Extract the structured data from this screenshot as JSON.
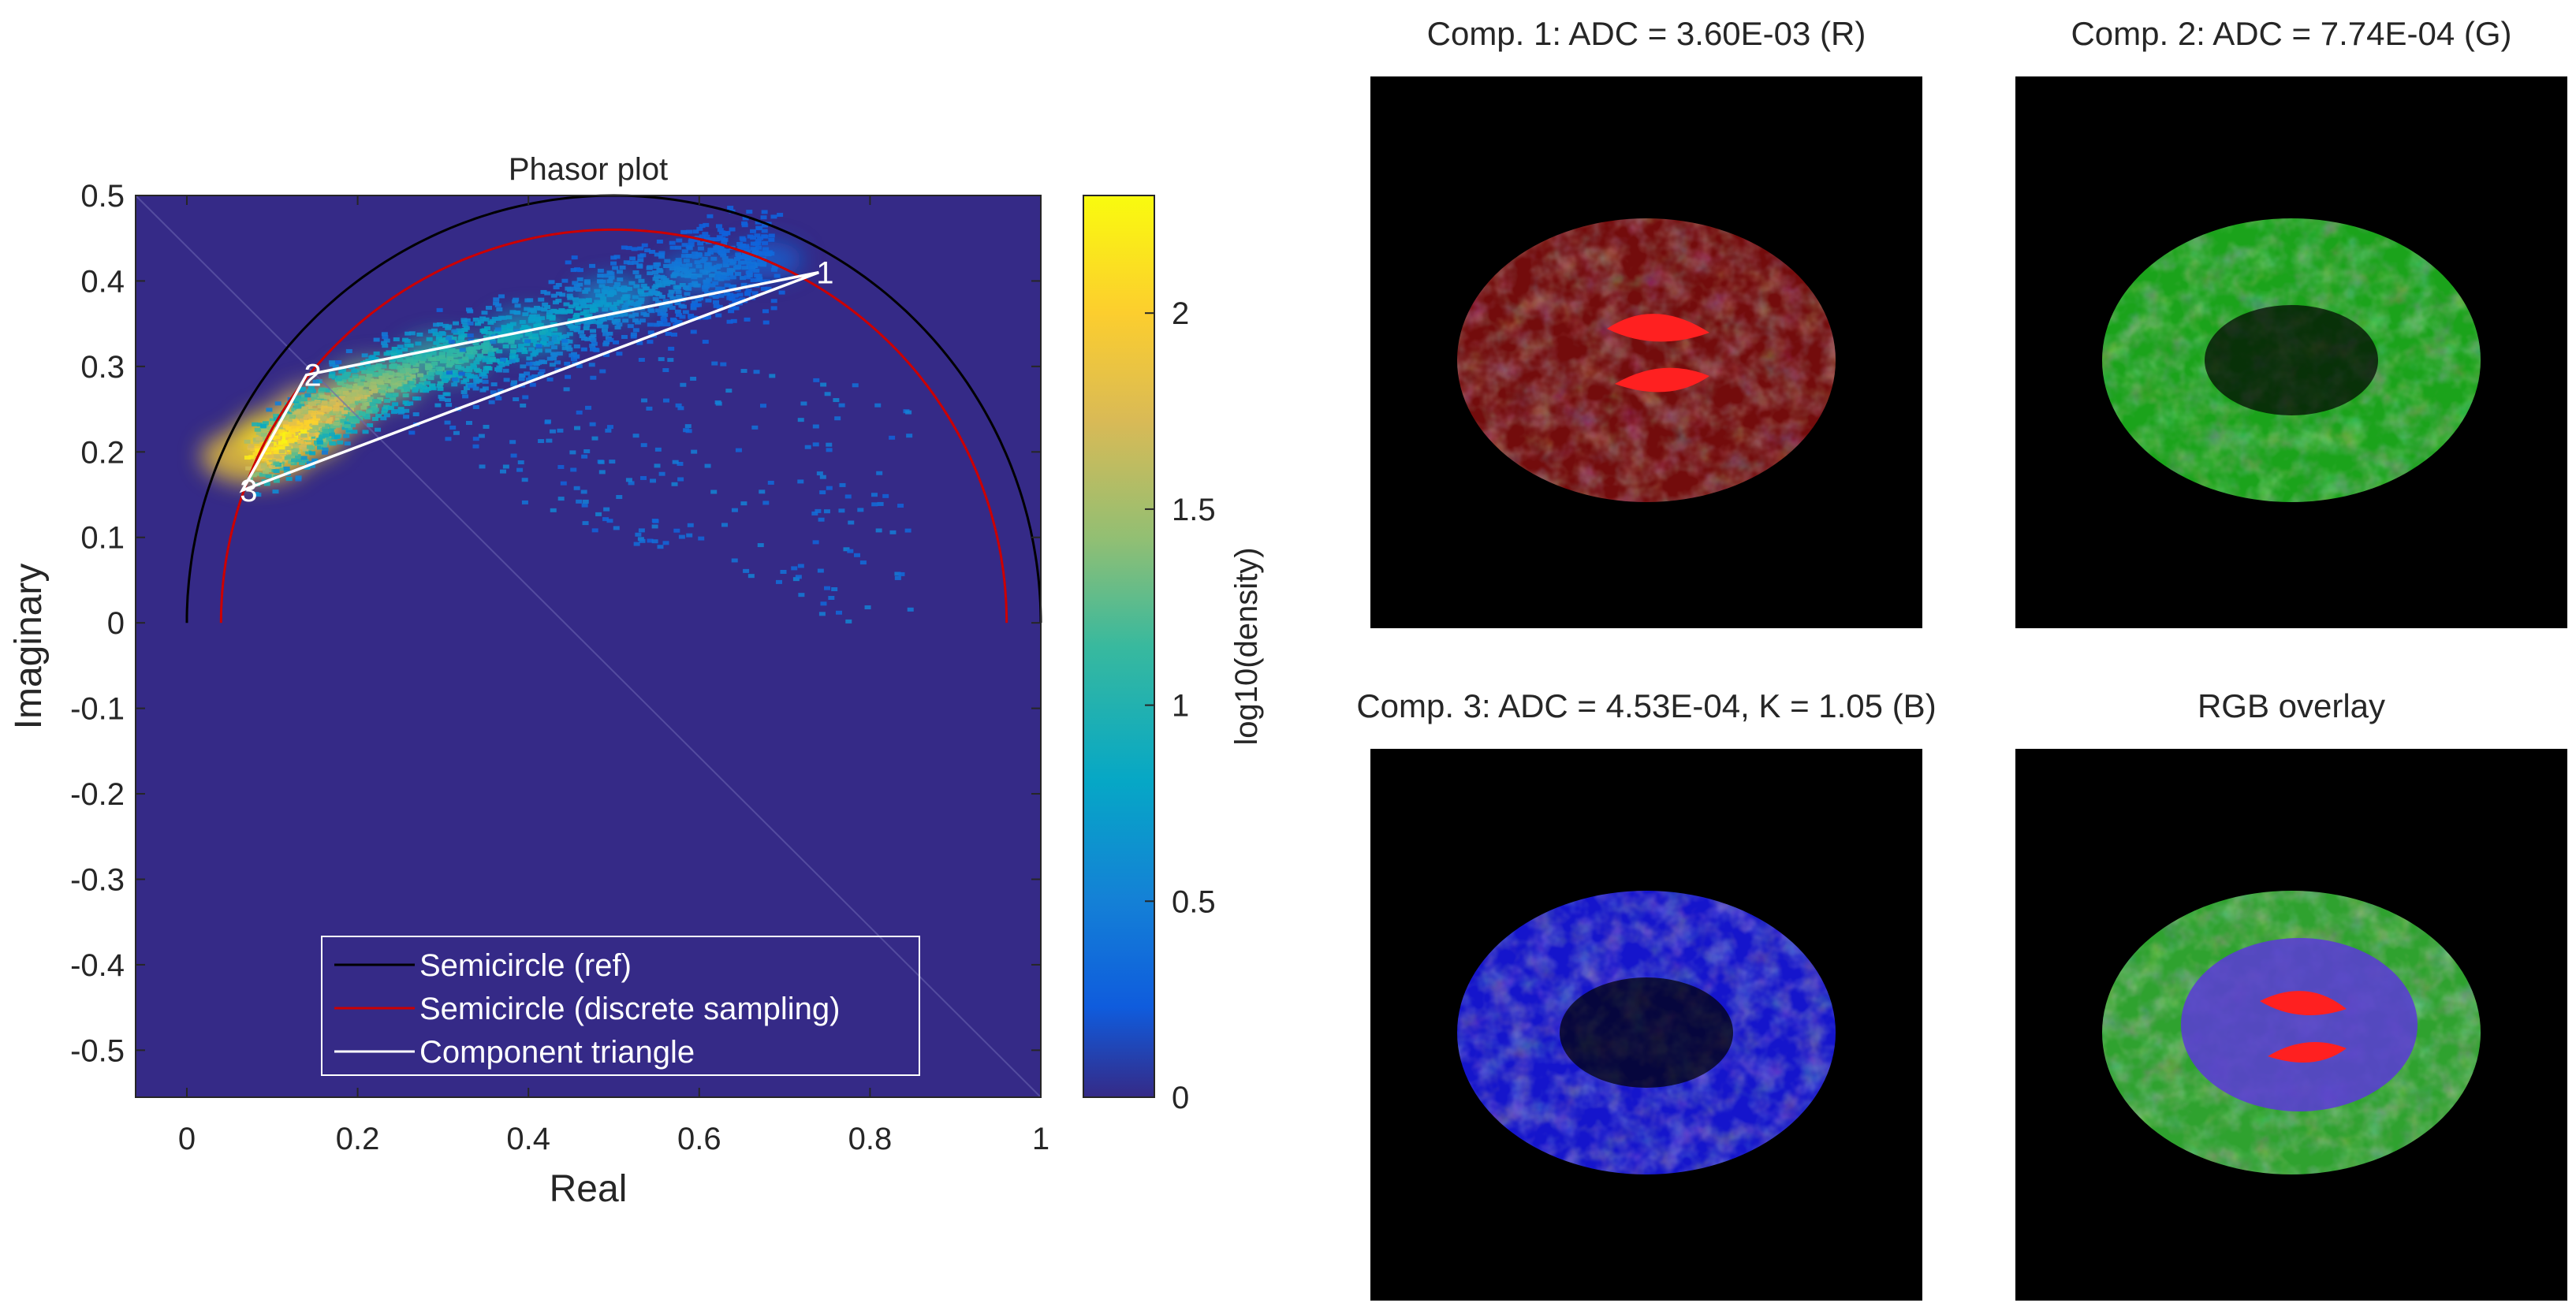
{
  "chart_data": [
    {
      "type": "scatter",
      "title": "Phasor plot",
      "xlabel": "Real",
      "ylabel": "Imaginary",
      "xlim": [
        -0.06,
        1.0
      ],
      "ylim": [
        -0.555,
        0.5
      ],
      "xticks": [
        0,
        0.2,
        0.4,
        0.6,
        0.8,
        1
      ],
      "xtick_labels": [
        "0",
        "0.2",
        "0.4",
        "0.6",
        "0.8",
        "1"
      ],
      "yticks": [
        0.5,
        0.4,
        0.3,
        0.2,
        0.1,
        0,
        -0.1,
        -0.2,
        -0.3,
        -0.4,
        -0.5
      ],
      "ytick_labels": [
        "0.5",
        "0.4",
        "0.3",
        "0.2",
        "0.1",
        "0",
        "-0.1",
        "-0.2",
        "-0.3",
        "-0.4",
        "-0.5"
      ],
      "grid": false,
      "background_color": "#352a87",
      "colormap": "parula",
      "colorbar": {
        "label": "log10(density)",
        "range": [
          0,
          2.3
        ],
        "ticks": [
          0,
          0.5,
          1,
          1.5,
          2
        ],
        "tick_labels": [
          "0",
          "0.5",
          "1",
          "1.5",
          "2"
        ]
      },
      "density_ridge": [
        {
          "x": 0.08,
          "y": 0.195,
          "level": 2.2
        },
        {
          "x": 0.12,
          "y": 0.22,
          "level": 2.3
        },
        {
          "x": 0.16,
          "y": 0.25,
          "level": 1.9
        },
        {
          "x": 0.22,
          "y": 0.28,
          "level": 1.5
        },
        {
          "x": 0.3,
          "y": 0.31,
          "level": 1.2
        },
        {
          "x": 0.4,
          "y": 0.34,
          "level": 0.9
        },
        {
          "x": 0.5,
          "y": 0.38,
          "level": 0.7
        },
        {
          "x": 0.6,
          "y": 0.41,
          "level": 0.5
        },
        {
          "x": 0.68,
          "y": 0.425,
          "level": 0.35
        }
      ],
      "series": [
        {
          "name": "Semicircle (ref)",
          "color": "#000000",
          "curve": "semicircle",
          "center": [
            0.5,
            0
          ],
          "radius": 0.5
        },
        {
          "name": "Semicircle (discrete sampling)",
          "color": "#cc0000",
          "curve": "semicircle",
          "center": [
            0.5,
            0
          ],
          "radius": 0.46
        },
        {
          "name": "Component triangle",
          "color": "#ffffff",
          "points": [
            {
              "label": "1",
              "x": 0.74,
              "y": 0.41
            },
            {
              "label": "2",
              "x": 0.14,
              "y": 0.29
            },
            {
              "label": "3",
              "x": 0.065,
              "y": 0.155
            }
          ]
        }
      ],
      "legend": {
        "position": "bottom-center",
        "entries": [
          {
            "label": "Semicircle (ref)",
            "color": "#000000"
          },
          {
            "label": "Semicircle (discrete sampling)",
            "color": "#cc0000"
          },
          {
            "label": "Component triangle",
            "color": "#ffffff"
          }
        ]
      }
    }
  ],
  "panels": [
    {
      "title": "Comp. 1: ADC = 3.60E-03 (R)",
      "tint": "#ff1a1a"
    },
    {
      "title": "Comp. 2: ADC = 7.74E-04 (G)",
      "tint": "#22cc22"
    },
    {
      "title": "Comp. 3: ADC = 4.53E-04, K = 1.05 (B)",
      "tint": "#1a1aff"
    },
    {
      "title": "RGB overlay",
      "tint": "rgb"
    }
  ]
}
